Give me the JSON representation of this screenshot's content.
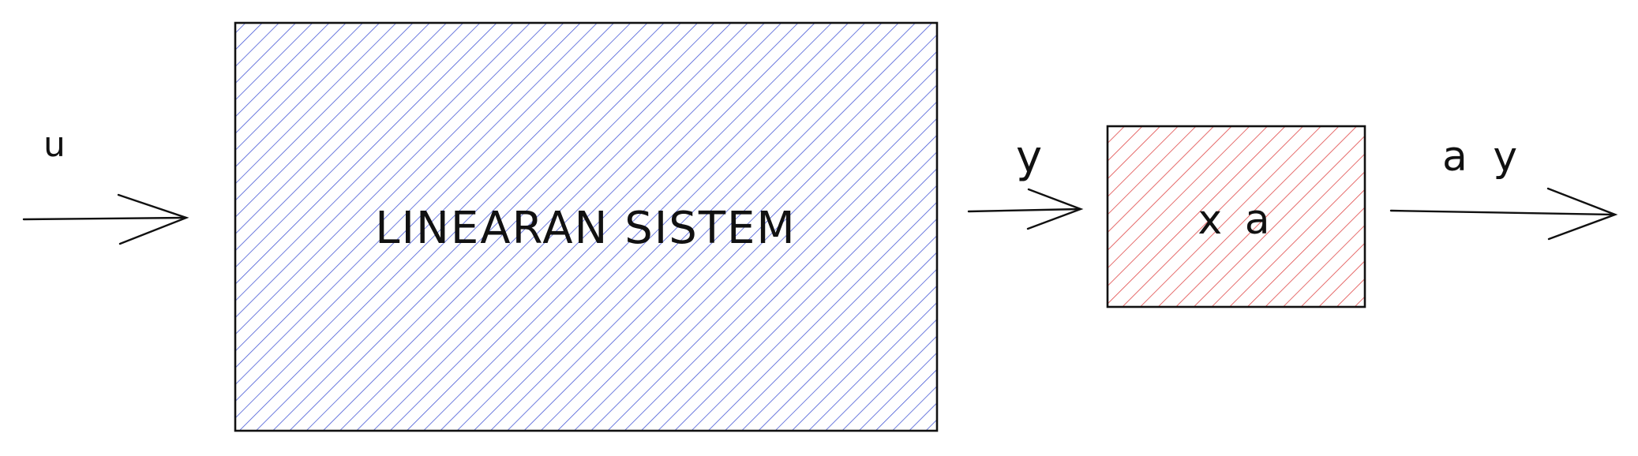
{
  "blocks": {
    "system": {
      "label": "LINEARAN SISTEM",
      "hatch_color": "#4a5bd6"
    },
    "gain": {
      "label": "x a",
      "hatch_color": "#e04848"
    }
  },
  "signals": {
    "input": "u",
    "intermediate": "y",
    "output": "a y"
  },
  "colors": {
    "stroke": "#111111"
  }
}
